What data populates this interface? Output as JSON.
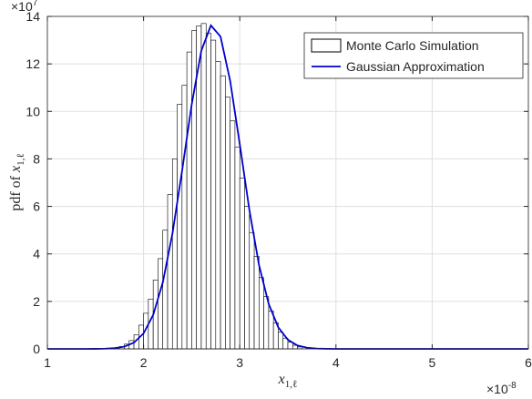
{
  "chart_data": {
    "type": "histogram",
    "bins": [
      1.65,
      1.7,
      1.75,
      1.8,
      1.85,
      1.9,
      1.95,
      2.0,
      2.05,
      2.1,
      2.15,
      2.2,
      2.25,
      2.3,
      2.35,
      2.4,
      2.45,
      2.5,
      2.55,
      2.6,
      2.65,
      2.7,
      2.75,
      2.8,
      2.85,
      2.9,
      2.95,
      3.0,
      3.05,
      3.1,
      3.15,
      3.2,
      3.25,
      3.3,
      3.35,
      3.4,
      3.45,
      3.5,
      3.55,
      3.6,
      3.65
    ],
    "counts": [
      0.02,
      0.05,
      0.1,
      0.2,
      0.35,
      0.6,
      1.0,
      1.5,
      2.1,
      2.9,
      3.8,
      5.0,
      6.5,
      8.0,
      10.3,
      11.1,
      12.5,
      13.4,
      13.6,
      13.7,
      13.3,
      13.0,
      12.1,
      11.5,
      10.6,
      9.6,
      8.5,
      7.2,
      6.0,
      4.9,
      3.9,
      3.0,
      2.2,
      1.6,
      1.1,
      0.7,
      0.45,
      0.28,
      0.15,
      0.08
    ],
    "hist_name": "Monte Carlo Simulation",
    "hist_color": "#ffffff",
    "hist_edge": "#000000",
    "line": {
      "name": "Gaussian Approximation",
      "color": "#0000cc",
      "x": [
        1.0,
        1.1,
        1.2,
        1.3,
        1.4,
        1.5,
        1.6,
        1.7,
        1.8,
        1.9,
        2.0,
        2.1,
        2.2,
        2.3,
        2.4,
        2.5,
        2.6,
        2.7,
        2.8,
        2.9,
        3.0,
        3.1,
        3.2,
        3.3,
        3.4,
        3.5,
        3.6,
        3.7,
        3.8,
        3.9,
        4.0,
        4.1,
        4.2,
        4.3,
        4.4,
        4.5,
        4.6,
        4.7,
        4.8,
        4.9,
        5.0,
        5.1,
        5.2,
        5.3,
        5.4,
        5.5,
        5.6,
        5.7,
        5.8,
        5.9,
        6.0
      ],
      "values": [
        0,
        0,
        0,
        0,
        0,
        0.002,
        0.009,
        0.031,
        0.095,
        0.264,
        0.653,
        1.43,
        2.8,
        4.85,
        7.49,
        10.28,
        12.55,
        13.62,
        13.15,
        11.29,
        8.62,
        5.85,
        3.53,
        1.9,
        0.91,
        0.385,
        0.145,
        0.049,
        0.015,
        0.004,
        0.001,
        0,
        0,
        0,
        0,
        0,
        0,
        0,
        0,
        0,
        0,
        0,
        0,
        0,
        0,
        0,
        0,
        0,
        0,
        0,
        0
      ]
    },
    "xlabel_var": "x",
    "xlabel_sub": "1,ℓ",
    "ylabel_prefix": "pdf of",
    "ylabel_var": "x",
    "ylabel_sub": "1,ℓ",
    "x_multiplier": {
      "base": "×10",
      "exponent": "-8"
    },
    "y_multiplier": {
      "base": "×10",
      "exponent": "7"
    },
    "xlim": [
      1,
      6
    ],
    "xticks": [
      1,
      2,
      3,
      4,
      5,
      6
    ],
    "ylim": [
      0,
      14
    ],
    "yticks": [
      0,
      2,
      4,
      6,
      8,
      10,
      12,
      14
    ],
    "grid": true,
    "legend": "top-right"
  }
}
